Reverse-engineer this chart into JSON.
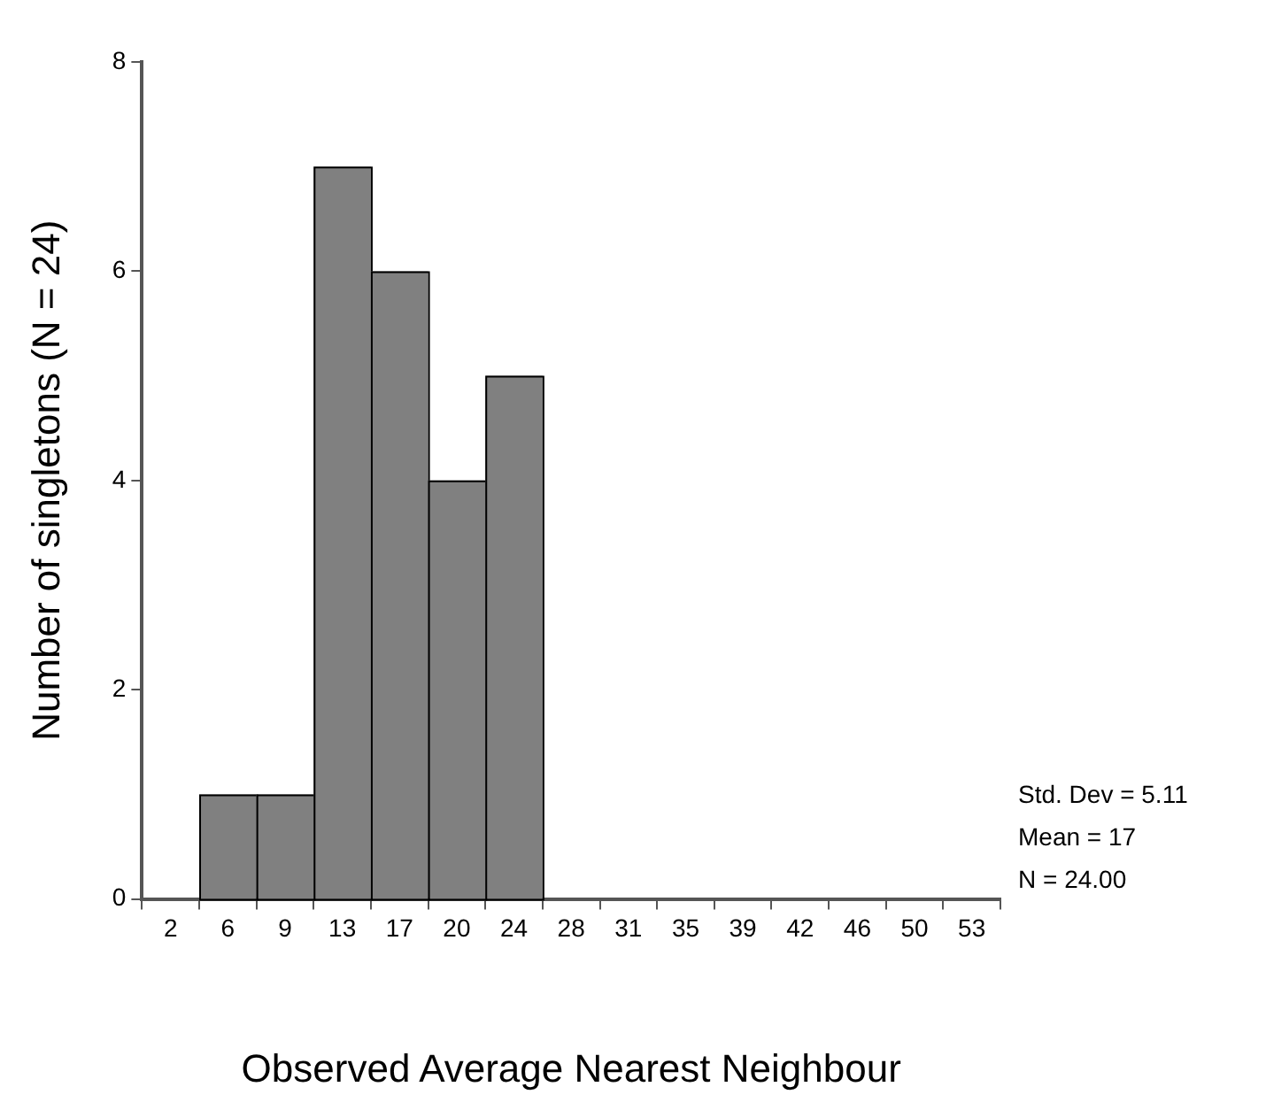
{
  "chart_data": {
    "type": "histogram",
    "xlabel": "Observed Average Nearest Neighbour",
    "ylabel": "Number of singletons (N = 24)",
    "bins": [
      0.17,
      3.83,
      7.49,
      11.15,
      14.81,
      18.47,
      22.13,
      25.79,
      29.45,
      33.11,
      36.77,
      40.43,
      44.09,
      47.75,
      51.41,
      55.07
    ],
    "values": [
      0,
      1,
      1,
      7,
      6,
      4,
      5,
      0,
      0,
      0,
      0,
      0,
      0,
      0,
      0
    ],
    "color": "#808080",
    "xlim": [
      0.17,
      55.07
    ],
    "xticks": [
      {
        "value": 2,
        "label": "2"
      },
      {
        "value": 5.66,
        "label": "6"
      },
      {
        "value": 9.32,
        "label": "9"
      },
      {
        "value": 12.98,
        "label": "13"
      },
      {
        "value": 16.64,
        "label": "17"
      },
      {
        "value": 20.3,
        "label": "20"
      },
      {
        "value": 23.96,
        "label": "24"
      },
      {
        "value": 27.62,
        "label": "28"
      },
      {
        "value": 31.28,
        "label": "31"
      },
      {
        "value": 34.94,
        "label": "35"
      },
      {
        "value": 38.6,
        "label": "39"
      },
      {
        "value": 42.26,
        "label": "42"
      },
      {
        "value": 45.92,
        "label": "46"
      },
      {
        "value": 49.58,
        "label": "50"
      },
      {
        "value": 53.24,
        "label": "53"
      }
    ],
    "ylim": [
      0,
      8
    ],
    "yticks": [
      0,
      2,
      4,
      6,
      8
    ],
    "grid": false,
    "legend": false,
    "annotations": [
      "Std. Dev = 5.11",
      "Mean = 17",
      "N = 24.00"
    ]
  }
}
